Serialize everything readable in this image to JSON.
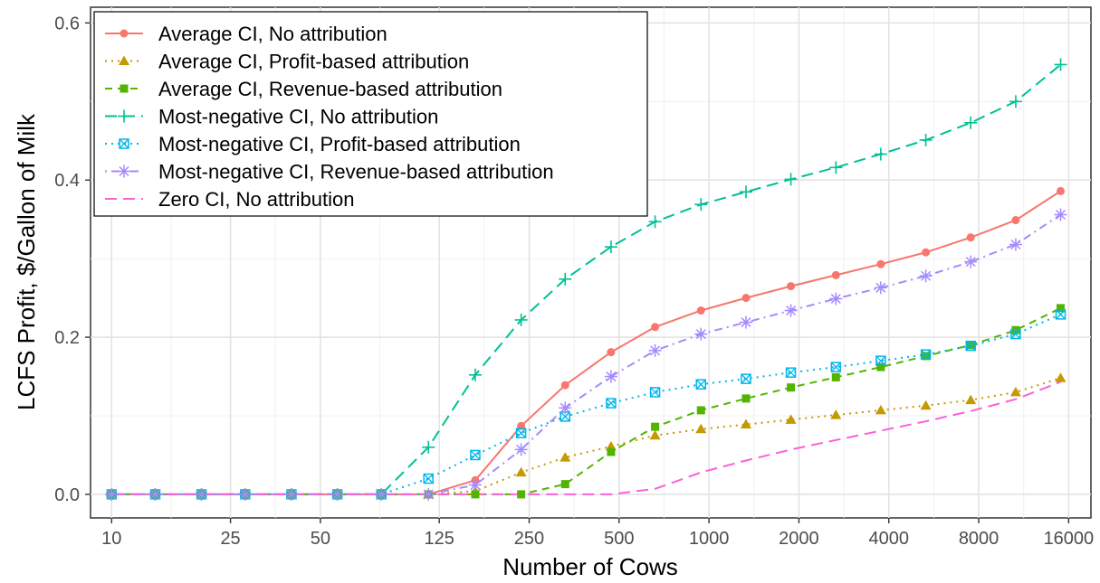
{
  "chart_data": {
    "type": "line",
    "xlabel": "Number of Cows",
    "ylabel": "LCFS Profit,  $/Gallon of Milk",
    "x_scale": "log",
    "x_tick_labels": [
      "10",
      "25",
      "50",
      "125",
      "250",
      "500",
      "1000",
      "2000",
      "4000",
      "8000",
      "16000"
    ],
    "x_tick_values": [
      10,
      25,
      50,
      125,
      250,
      500,
      1000,
      2000,
      4000,
      8000,
      16000
    ],
    "y_tick_labels": [
      "0.0",
      "0.2",
      "0.4",
      "0.6"
    ],
    "y_tick_values": [
      0,
      0.2,
      0.4,
      0.6
    ],
    "xlim": [
      8.5,
      19000
    ],
    "ylim": [
      -0.03,
      0.62
    ],
    "grid": true,
    "legend_position": "top-left",
    "x": [
      10,
      14,
      20,
      28,
      40,
      57,
      80,
      115,
      165,
      235,
      330,
      470,
      660,
      940,
      1330,
      1880,
      2660,
      3760,
      5320,
      7520,
      10640,
      15040
    ],
    "series": [
      {
        "name": "Average CI, No attribution",
        "color": "#F8766D",
        "dash": "solid",
        "marker": "circle",
        "values": [
          0,
          0,
          0,
          0,
          0,
          0,
          0,
          0,
          0.018,
          0.087,
          0.139,
          0.181,
          0.213,
          0.234,
          0.25,
          0.265,
          0.279,
          0.293,
          0.308,
          0.327,
          0.349,
          0.386
        ]
      },
      {
        "name": "Average CI, Profit-based attribution",
        "color": "#C49A00",
        "dash": "dotted",
        "marker": "triangle",
        "values": [
          0,
          0,
          0,
          0,
          0,
          0,
          0,
          0,
          0.004,
          0.028,
          0.047,
          0.061,
          0.075,
          0.083,
          0.089,
          0.095,
          0.101,
          0.107,
          0.113,
          0.12,
          0.13,
          0.148
        ]
      },
      {
        "name": "Average CI, Revenue-based attribution",
        "color": "#53B400",
        "dash": "dashed",
        "marker": "square",
        "values": [
          0,
          0,
          0,
          0,
          0,
          0,
          0,
          0,
          0,
          0,
          0.013,
          0.054,
          0.086,
          0.107,
          0.122,
          0.136,
          0.149,
          0.162,
          0.176,
          0.19,
          0.209,
          0.237
        ]
      },
      {
        "name": "Most-negative CI, No attribution",
        "color": "#00C094",
        "dash": "longdash",
        "marker": "plus",
        "values": [
          0,
          0,
          0,
          0,
          0,
          0,
          0,
          0.06,
          0.152,
          0.222,
          0.274,
          0.315,
          0.347,
          0.369,
          0.385,
          0.401,
          0.416,
          0.433,
          0.451,
          0.473,
          0.5,
          0.547
        ]
      },
      {
        "name": "Most-negative CI, Profit-based attribution",
        "color": "#00B6EB",
        "dash": "dotted",
        "marker": "boxcross",
        "values": [
          0,
          0,
          0,
          0,
          0,
          0,
          0,
          0.02,
          0.05,
          0.078,
          0.099,
          0.116,
          0.13,
          0.14,
          0.147,
          0.155,
          0.162,
          0.17,
          0.178,
          0.189,
          0.204,
          0.229
        ]
      },
      {
        "name": "Most-negative CI, Revenue-based attribution",
        "color": "#A58AFF",
        "dash": "dotdash",
        "marker": "asterisk",
        "values": [
          0,
          0,
          0,
          0,
          0,
          0,
          0,
          0,
          0.012,
          0.057,
          0.11,
          0.15,
          0.183,
          0.204,
          0.219,
          0.234,
          0.249,
          0.263,
          0.278,
          0.296,
          0.318,
          0.356
        ]
      },
      {
        "name": "Zero CI, No attribution",
        "color": "#FB61D7",
        "dash": "longdash",
        "marker": "none",
        "values": [
          0,
          0,
          0,
          0,
          0,
          0,
          0,
          0,
          0,
          0,
          0,
          0,
          0.007,
          0.028,
          0.043,
          0.057,
          0.069,
          0.081,
          0.093,
          0.106,
          0.121,
          0.143
        ]
      }
    ]
  }
}
